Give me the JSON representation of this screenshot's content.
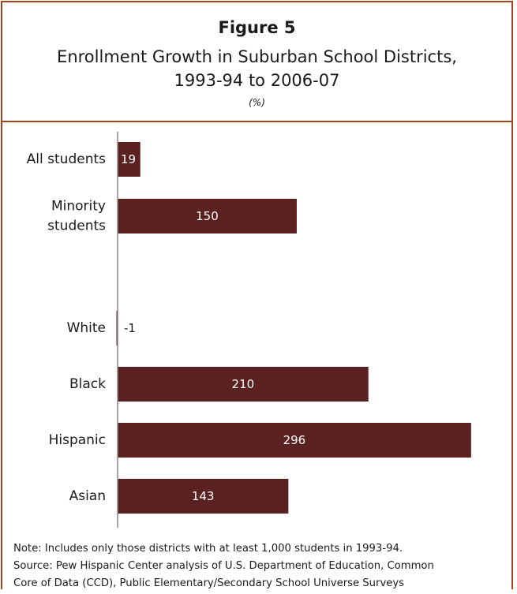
{
  "figure_label": "Figure 5",
  "title_line1": "Enrollment Growth in Suburban School Districts,",
  "title_line2": "1993-94 to 2006-07",
  "unit": "(%)",
  "notes": {
    "note": "Note: Includes only those districts with at least 1,000 students in 1993-94.",
    "source_line1": "Source: Pew Hispanic Center analysis of U.S. Department of Education, Common",
    "source_line2": "Core of Data (CCD), Public Elementary/Secondary School Universe Surveys"
  },
  "chart_data": {
    "type": "bar",
    "orientation": "horizontal",
    "title": "Figure 5 Enrollment Growth in Suburban School Districts, 1993-94 to 2006-07",
    "unit": "%",
    "categories": [
      [
        "All students"
      ],
      [
        "Minority",
        "students"
      ],
      [
        "White"
      ],
      [
        "Black"
      ],
      [
        "Hispanic"
      ],
      [
        "Asian"
      ]
    ],
    "values": [
      19,
      150,
      -1,
      210,
      296,
      143
    ],
    "value_labels": [
      "19",
      "150",
      "-1",
      "210",
      "296",
      "143"
    ],
    "groups": [
      [
        "All students",
        "Minority students"
      ],
      [
        "White",
        "Black",
        "Hispanic",
        "Asian"
      ]
    ],
    "grid": false,
    "bar_color": "#5b2121",
    "label_color_inside": "#ffffff",
    "label_color_outside": "#1a1a1a"
  }
}
